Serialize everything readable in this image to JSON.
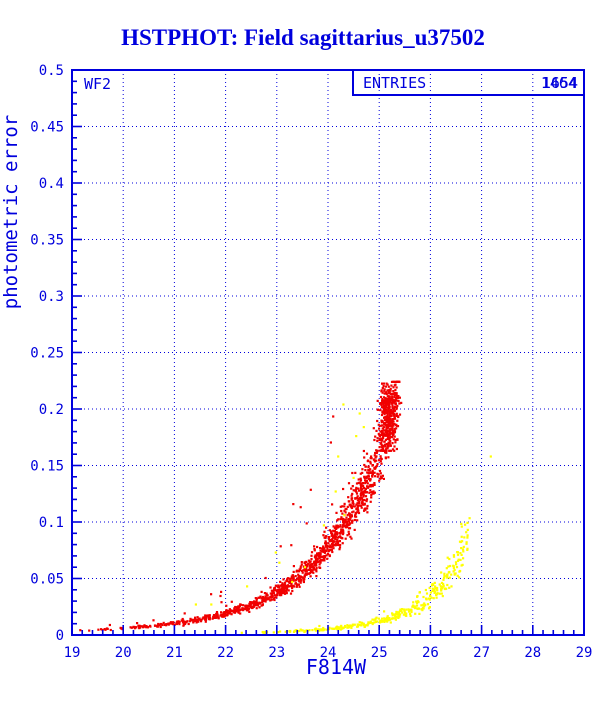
{
  "colors": {
    "axis_blue": "#0000dd",
    "red_series": "#f00000",
    "yellow_series": "#ffff00",
    "background": "#ffffff"
  },
  "chart_data": {
    "type": "scatter",
    "title": "HSTPHOT: Field sagittarius_u37502",
    "xlabel": "F814W",
    "ylabel": "photometric error",
    "xlim": [
      19,
      29
    ],
    "ylim": [
      0,
      0.5
    ],
    "x_major_ticks": [
      19,
      20,
      21,
      22,
      23,
      24,
      25,
      26,
      27,
      28,
      29
    ],
    "x_tick_labels": [
      "19",
      "20",
      "21",
      "22",
      "23",
      "24",
      "25",
      "26",
      "27",
      "28",
      "29"
    ],
    "y_major_ticks": [
      0,
      0.05,
      0.1,
      0.15,
      0.2,
      0.25,
      0.3,
      0.35,
      0.4,
      0.45,
      0.5
    ],
    "y_tick_labels": [
      "0",
      "0.05",
      "0.1",
      "0.15",
      "0.2",
      "0.25",
      "0.3",
      "0.35",
      "0.4",
      "0.45",
      "0.5"
    ],
    "x_minor_step": 0.2,
    "y_minor_step": 0.01,
    "grid": {
      "style": "dotted",
      "on_major": true,
      "legend_position": "none"
    },
    "annotations": {
      "chip_label": "WF2",
      "entries_label": "ENTRIES",
      "entries_values": [
        "1654",
        "1464"
      ]
    },
    "series": [
      {
        "name": "wf2-photometric-error-red",
        "color": "#f00000",
        "n_points": 1300,
        "curve": [
          [
            19,
            0.0035
          ],
          [
            19.5,
            0.0045
          ],
          [
            20,
            0.006
          ],
          [
            20.5,
            0.0078
          ],
          [
            21,
            0.0102
          ],
          [
            21.5,
            0.0138
          ],
          [
            22,
            0.019
          ],
          [
            22.5,
            0.0265
          ],
          [
            23,
            0.038
          ],
          [
            23.5,
            0.0545
          ],
          [
            24,
            0.079
          ],
          [
            24.3,
            0.098
          ],
          [
            24.6,
            0.121
          ],
          [
            24.9,
            0.149
          ],
          [
            25.1,
            0.172
          ],
          [
            25.25,
            0.193
          ],
          [
            25.38,
            0.212
          ]
        ],
        "x_pow": 0.4,
        "sigma": 0.085,
        "outlier_p": 0.03,
        "y_clip": [
          0.0008,
          0.224
        ],
        "cluster": {
          "cx": 25.18,
          "cy": 0.193,
          "sx": 0.085,
          "sy": 0.016,
          "n": 300,
          "xmin": 24.97,
          "xmax": 25.43,
          "ymin": 0.163,
          "ymax": 0.2225
        }
      },
      {
        "name": "wf2-photometric-error-yellow",
        "color": "#ffff00",
        "n_points": 360,
        "curve": [
          [
            22.2,
            0.0018
          ],
          [
            22.8,
            0.0024
          ],
          [
            23.4,
            0.0035
          ],
          [
            24,
            0.0053
          ],
          [
            24.5,
            0.008
          ],
          [
            25,
            0.0125
          ],
          [
            25.4,
            0.018
          ],
          [
            25.8,
            0.027
          ],
          [
            26.1,
            0.038
          ],
          [
            26.35,
            0.05
          ],
          [
            26.55,
            0.065
          ],
          [
            26.75,
            0.085
          ]
        ],
        "x_pow": 0.45,
        "sigma": 0.14,
        "outlier_p": 0.02,
        "y_clip": [
          0.0008,
          0.11
        ],
        "extra_points": [
          [
            27.18,
            0.158
          ],
          [
            26.62,
            0.083
          ],
          [
            26.7,
            0.091
          ],
          [
            26.54,
            0.071
          ],
          [
            24.3,
            0.204
          ],
          [
            24.62,
            0.196
          ],
          [
            24.7,
            0.184
          ],
          [
            24.55,
            0.176
          ],
          [
            24.2,
            0.158
          ],
          [
            24.5,
            0.139
          ],
          [
            24.15,
            0.127
          ],
          [
            24.32,
            0.106
          ],
          [
            23.92,
            0.097
          ],
          [
            23.55,
            0.06
          ],
          [
            23.3,
            0.047
          ],
          [
            22.98,
            0.073
          ],
          [
            23.05,
            0.064
          ],
          [
            22.42,
            0.043
          ],
          [
            21.42,
            0.027
          ],
          [
            21.72,
            0.027
          ]
        ]
      }
    ]
  }
}
